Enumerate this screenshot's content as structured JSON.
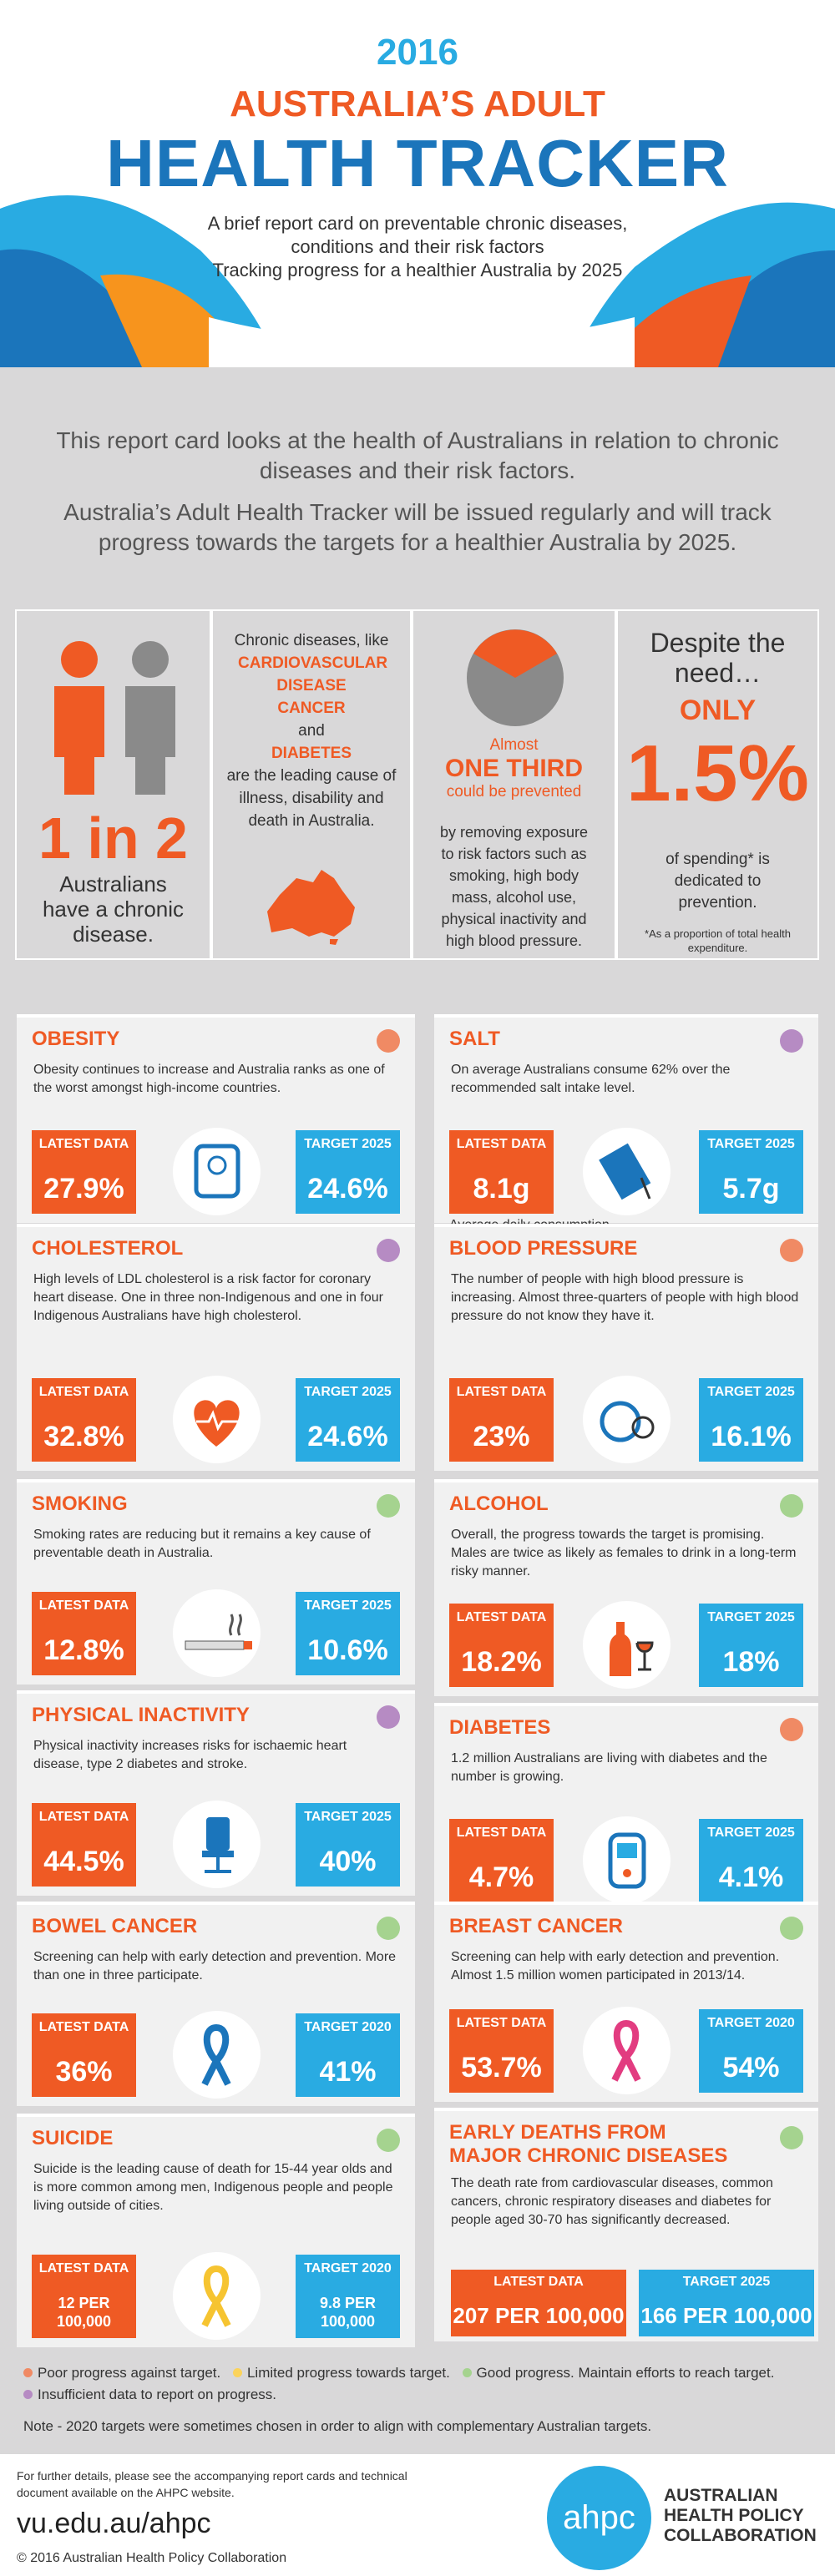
{
  "header": {
    "year": "2016",
    "title_line1": "AUSTRALIA’S ADULT",
    "title_line2": "HEALTH TRACKER",
    "sub1": "A brief report card on preventable chronic diseases,",
    "sub2": "conditions and their risk factors",
    "sub3": "Tracking progress for a healthier Australia by 2025"
  },
  "intro": {
    "p1": "This report card looks at the health of Australians in relation to chronic diseases and their risk factors.",
    "p2": "Australia’s Adult Health Tracker will be issued regularly and will track progress towards the targets for a healthier Australia by 2025."
  },
  "stats": {
    "s1": {
      "big": "1 in 2",
      "text": "Australians have a chronic disease."
    },
    "s2": {
      "lead": "Chronic diseases, like",
      "d1": "CARDIOVASCULAR DISEASE",
      "d2": "CANCER",
      "and": "and",
      "d3": "DIABETES",
      "tail": "are the leading cause of illness, disability and death in Australia."
    },
    "s3": {
      "almost": "Almost",
      "big": "ONE THIRD",
      "prev": "could be prevented",
      "tail": "by removing exposure to risk factors such as smoking, high body mass, alcohol use, physical inactivity and high blood pressure."
    },
    "s4": {
      "lead": "Despite the need…",
      "only": "ONLY",
      "big": "1.5%",
      "tail": "of spending* is dedicated to prevention.",
      "note": "*As a proportion of total health expenditure."
    }
  },
  "cards": [
    {
      "title": "OBESITY",
      "desc": "Obesity continues to increase and Australia ranks as one of the worst amongst high-income countries.",
      "latest_label": "LATEST DATA",
      "latest": "27.9%",
      "target_label": "TARGET 2025",
      "target": "24.6%",
      "icon": "scale-icon",
      "color": "#f08a64"
    },
    {
      "title": "SALT",
      "desc": "On average Australians consume 62% over the recommended salt intake level.",
      "latest_label": "LATEST DATA",
      "latest": "8.1g",
      "target_label": "TARGET 2025",
      "target": "5.7g",
      "icon": "salt-icon",
      "color": "#b68bc3",
      "note": "Average daily consumption"
    },
    {
      "title": "CHOLESTEROL",
      "desc": "High levels of LDL cholesterol is a risk factor for coronary heart disease. One in three non-Indigenous and one in four Indigenous Australians have high cholesterol.",
      "latest_label": "LATEST DATA",
      "latest": "32.8%",
      "target_label": "TARGET 2025",
      "target": "24.6%",
      "icon": "heart-icon",
      "color": "#b68bc3"
    },
    {
      "title": "BLOOD PRESSURE",
      "desc": "The number of people with high blood pressure is increasing. Almost three-quarters of people with high blood pressure do not know they have it.",
      "latest_label": "LATEST DATA",
      "latest": "23%",
      "target_label": "TARGET 2025",
      "target": "16.1%",
      "icon": "bp-icon",
      "color": "#f08a64"
    },
    {
      "title": "SMOKING",
      "desc": "Smoking rates are reducing but it remains a key cause of preventable death in Australia.",
      "latest_label": "LATEST DATA",
      "latest": "12.8%",
      "target_label": "TARGET 2025",
      "target": "10.6%",
      "icon": "cigarette-icon",
      "color": "#a5d38f"
    },
    {
      "title": "ALCOHOL",
      "desc": "Overall, the progress towards the target is promising. Males are twice as likely as females to drink in a long-term risky manner.",
      "latest_label": "LATEST DATA",
      "latest": "18.2%",
      "target_label": "TARGET 2025",
      "target": "18%",
      "icon": "wine-icon",
      "color": "#a5d38f"
    },
    {
      "title": "PHYSICAL INACTIVITY",
      "desc": "Physical inactivity increases risks for ischaemic heart disease, type 2 diabetes and stroke.",
      "latest_label": "LATEST DATA",
      "latest": "44.5%",
      "target_label": "TARGET 2025",
      "target": "40%",
      "icon": "chair-icon",
      "color": "#b68bc3"
    },
    {
      "title": "DIABETES",
      "desc": "1.2 million Australians are living with diabetes and the number is growing.",
      "latest_label": "LATEST DATA",
      "latest": "4.7%",
      "target_label": "TARGET 2025",
      "target": "4.1%",
      "icon": "glucometer-icon",
      "color": "#f08a64"
    },
    {
      "title": "BOWEL CANCER",
      "desc": "Screening can help with early detection and prevention. More than one in three participate.",
      "latest_label": "LATEST DATA",
      "latest": "36%",
      "target_label": "TARGET 2020",
      "target": "41%",
      "icon": "blue-ribbon-icon",
      "color": "#a5d38f"
    },
    {
      "title": "BREAST CANCER",
      "desc": "Screening can help with early detection and prevention. Almost 1.5 million women participated in 2013/14.",
      "latest_label": "LATEST DATA",
      "latest": "53.7%",
      "target_label": "TARGET 2020",
      "target": "54%",
      "icon": "pink-ribbon-icon",
      "color": "#a5d38f"
    },
    {
      "title": "SUICIDE",
      "desc": "Suicide is the leading cause of death for 15-44 year olds and is more common among men, Indigenous people and people living outside of cities.",
      "latest_label": "LATEST DATA",
      "latest": "12 PER 100,000",
      "target_label": "TARGET 2020",
      "target": "9.8 PER 100,000",
      "icon": "yellow-ribbon-icon",
      "color": "#a5d38f"
    },
    {
      "title": "EARLY DEATHS FROM MAJOR CHRONIC DISEASES",
      "desc": "The death rate from cardiovascular diseases, common cancers, chronic respiratory diseases and diabetes for people aged 30-70 has significantly decreased.",
      "latest_label": "LATEST DATA",
      "latest": "207 PER 100,000",
      "target_label": "TARGET 2025",
      "target": "166 PER 100,000",
      "icon": "",
      "color": "#a5d38f"
    }
  ],
  "legend": {
    "l1": "Poor progress against target.",
    "l2": "Limited progress towards target.",
    "l3": "Good progress. Maintain efforts to reach target.",
    "l4": "Insufficient data to report on progress.",
    "note": "Note - 2020 targets were sometimes chosen in order to align with complementary Australian targets."
  },
  "footer": {
    "details": "For further details, please see the accompanying report cards and technical document available on the AHPC website.",
    "url": "vu.edu.au/ahpc",
    "copyright": "© 2016 Australian Health Policy Collaboration",
    "logo": "ahpc",
    "org1": "AUSTRALIAN",
    "org2": "HEALTH POLICY",
    "org3": "COLLABORATION"
  }
}
